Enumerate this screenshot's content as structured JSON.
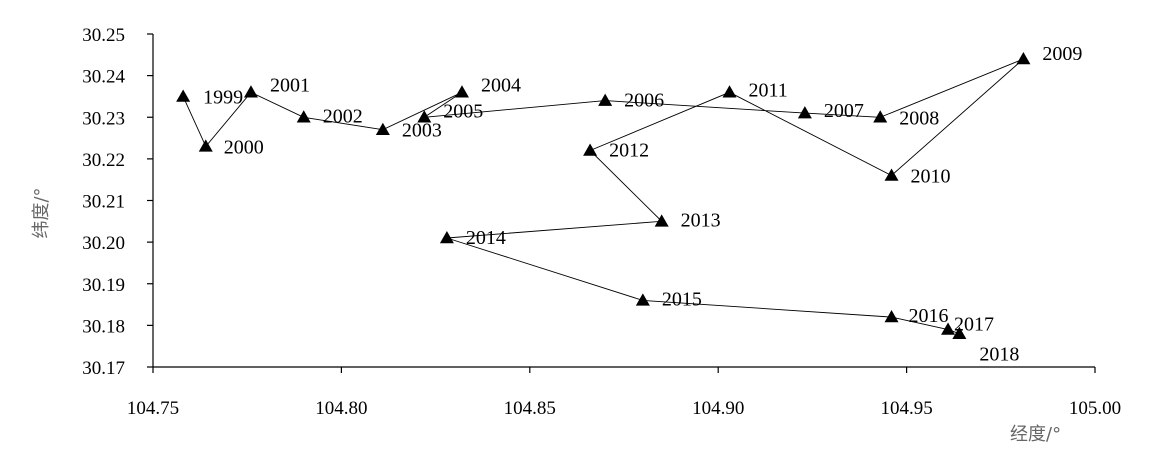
{
  "chart_data": {
    "type": "scatter",
    "mode": "connected-line",
    "marker": "triangle",
    "xlabel": "经度/°",
    "ylabel": "纬度/°",
    "xlim": [
      104.75,
      105.0
    ],
    "ylim": [
      30.17,
      30.25
    ],
    "x_ticks": [
      "104.75",
      "104.80",
      "104.85",
      "104.90",
      "104.95",
      "105.00"
    ],
    "y_ticks": [
      "30.25",
      "30.24",
      "30.23",
      "30.22",
      "30.21",
      "30.20",
      "30.19",
      "30.18",
      "30.17"
    ],
    "grid": false,
    "colors": {
      "line": "#000000",
      "marker": "#000000",
      "axis": "#000000"
    },
    "points": [
      {
        "label": "1999",
        "x": 104.758,
        "y": 30.235
      },
      {
        "label": "2000",
        "x": 104.764,
        "y": 30.223
      },
      {
        "label": "2001",
        "x": 104.776,
        "y": 30.236
      },
      {
        "label": "2002",
        "x": 104.79,
        "y": 30.23
      },
      {
        "label": "2003",
        "x": 104.811,
        "y": 30.227
      },
      {
        "label": "2004",
        "x": 104.832,
        "y": 30.236
      },
      {
        "label": "2005",
        "x": 104.822,
        "y": 30.23
      },
      {
        "label": "2006",
        "x": 104.87,
        "y": 30.234
      },
      {
        "label": "2007",
        "x": 104.923,
        "y": 30.231
      },
      {
        "label": "2008",
        "x": 104.943,
        "y": 30.23
      },
      {
        "label": "2009",
        "x": 104.981,
        "y": 30.244
      },
      {
        "label": "2010",
        "x": 104.946,
        "y": 30.216
      },
      {
        "label": "2011",
        "x": 104.903,
        "y": 30.236
      },
      {
        "label": "2012",
        "x": 104.866,
        "y": 30.222
      },
      {
        "label": "2013",
        "x": 104.885,
        "y": 30.205
      },
      {
        "label": "2014",
        "x": 104.828,
        "y": 30.201
      },
      {
        "label": "2015",
        "x": 104.88,
        "y": 30.186
      },
      {
        "label": "2016",
        "x": 104.946,
        "y": 30.182
      },
      {
        "label": "2017",
        "x": 104.961,
        "y": 30.179
      },
      {
        "label": "2018",
        "x": 104.964,
        "y": 30.178
      }
    ]
  }
}
